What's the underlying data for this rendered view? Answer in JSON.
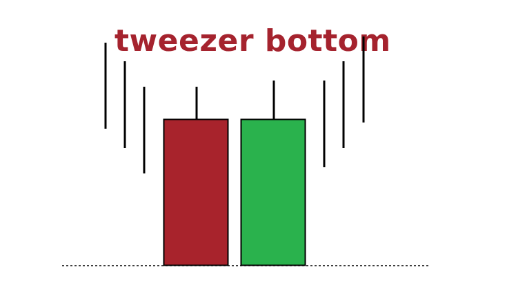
{
  "title": "tweezer bottom",
  "colors": {
    "title": "#a5232e",
    "bearish_candle": "#a8232c",
    "bullish_candle": "#2ab24d",
    "candle_outline": "#000000",
    "wick": "#000000",
    "trend_lines": "#000000",
    "baseline": "#000000"
  },
  "candles": [
    {
      "name": "bearish-candle",
      "direction": "down"
    },
    {
      "name": "bullish-candle",
      "direction": "up"
    }
  ],
  "pattern": {
    "prior_trend": "down",
    "following_trend": "up",
    "shared_level": "bottom"
  }
}
